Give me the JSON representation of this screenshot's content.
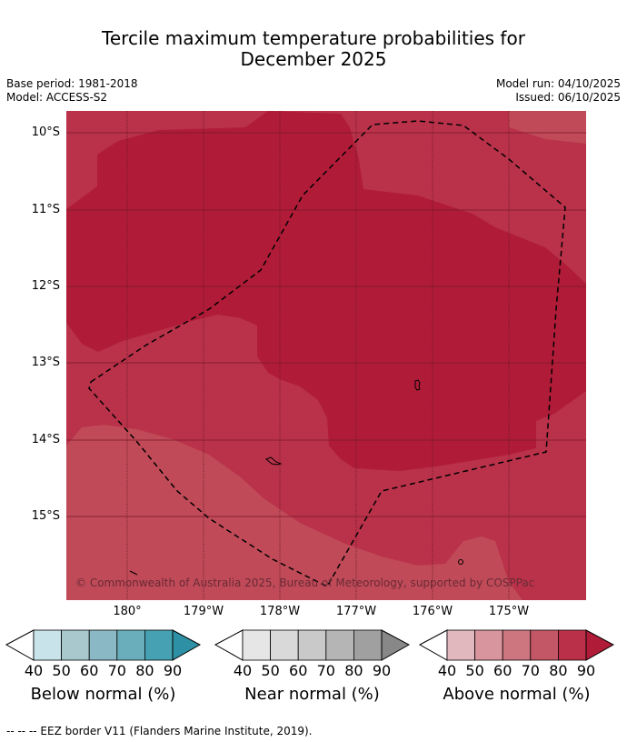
{
  "title_line1": "Tercile maximum temperature probabilities for",
  "title_line2": "December 2025",
  "base_period": "Base period: 1981-2018",
  "model": "Model: ACCESS-S2",
  "model_run": "Model run: 04/10/2025",
  "issued": "Issued: 06/10/2025",
  "lat_labels": [
    "10°S",
    "11°S",
    "12°S",
    "13°S",
    "14°S",
    "15°S"
  ],
  "lon_labels": [
    "180°",
    "179°W",
    "178°W",
    "177°W",
    "176°W",
    "175°W"
  ],
  "credit": "© Commonwealth of Australia 2025, Bureau of Meteorology, supported by COSPPac",
  "map_colors": {
    "dark": "#b01c38",
    "mid": "#b9324a",
    "light": "#c04a58"
  },
  "colorbars": [
    {
      "title": "Below normal (%)",
      "ticks": [
        "40",
        "50",
        "60",
        "70",
        "80",
        "90"
      ],
      "colors": [
        "#c9e3ea",
        "#a8c8ce",
        "#8ab8c4",
        "#6aaebb",
        "#46a2b3"
      ],
      "extend": "#2e90a4"
    },
    {
      "title": "Near normal (%)",
      "ticks": [
        "40",
        "50",
        "60",
        "70",
        "80",
        "90"
      ],
      "colors": [
        "#e6e6e6",
        "#d9d9d9",
        "#c9c9c9",
        "#b5b5b5",
        "#a0a0a0"
      ],
      "extend": "#888888"
    },
    {
      "title": "Above normal (%)",
      "ticks": [
        "40",
        "50",
        "60",
        "70",
        "80",
        "90"
      ],
      "colors": [
        "#e2b8bf",
        "#d9959d",
        "#cd767f",
        "#c45766",
        "#bb3049"
      ],
      "extend": "#b01c38"
    }
  ],
  "footnote": "--  --  -- EEZ border V11 (Flanders Marine Institute, 2019)."
}
